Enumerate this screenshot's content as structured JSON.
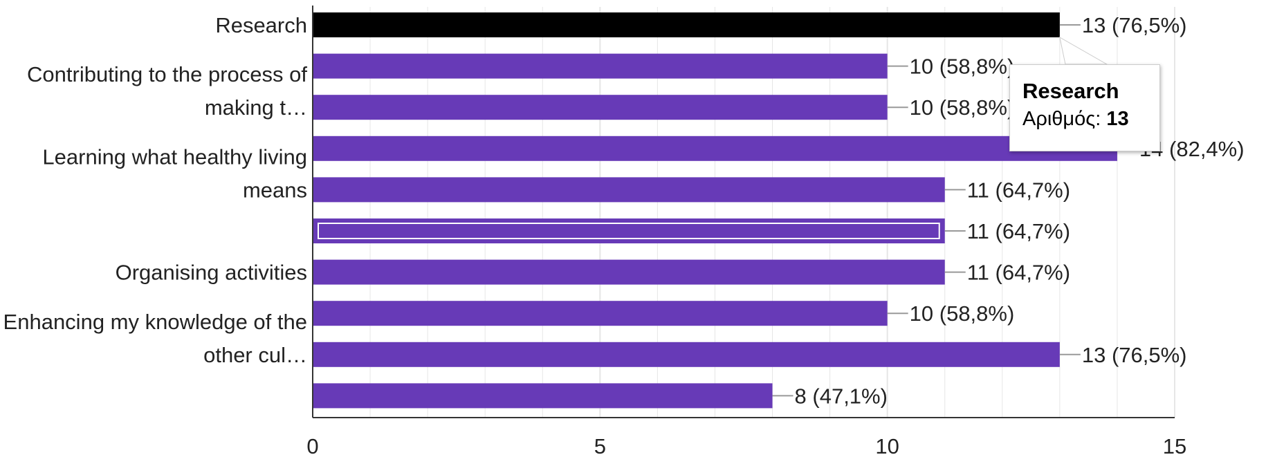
{
  "chart_data": {
    "type": "bar",
    "orientation": "horizontal",
    "bars": [
      {
        "value": 13,
        "label": "13 (76,5%)"
      },
      {
        "value": 10,
        "label": "10 (58,8%)"
      },
      {
        "value": 10,
        "label": "10 (58,8%)"
      },
      {
        "value": 14,
        "label": "14 (82,4%)"
      },
      {
        "value": 11,
        "label": "11 (64,7%)"
      },
      {
        "value": 11,
        "label": "11 (64,7%)"
      },
      {
        "value": 11,
        "label": "11 (64,7%)"
      },
      {
        "value": 10,
        "label": "10 (58,8%)"
      },
      {
        "value": 13,
        "label": "13 (76,5%)"
      },
      {
        "value": 8,
        "label": "8 (47,1%)"
      }
    ],
    "category_labels": [
      {
        "bar": 0,
        "lines": [
          "Research"
        ]
      },
      {
        "bar": 2,
        "lines": [
          "Contributing to the process of",
          "making t…"
        ]
      },
      {
        "bar": 4,
        "lines": [
          "Learning what healthy living",
          "means"
        ]
      },
      {
        "bar": 6,
        "lines": [
          "Organising activities"
        ]
      },
      {
        "bar": 8,
        "lines": [
          "Enhancing my knowledge of the",
          "other cul…"
        ]
      }
    ],
    "xlim": [
      0,
      15
    ],
    "xticks": [
      "0",
      "5",
      "10",
      "15"
    ],
    "gridlines": true,
    "highlighted_bar": 0,
    "selected_bar": 5,
    "colors": {
      "bar": "#673ab7",
      "highlight": "#000000",
      "grid": "#e6e6e6",
      "axis": "#333333",
      "leader": "#999999"
    }
  },
  "tooltip": {
    "title": "Research",
    "metric_label": "Αριθμός:",
    "metric_value": "13"
  }
}
